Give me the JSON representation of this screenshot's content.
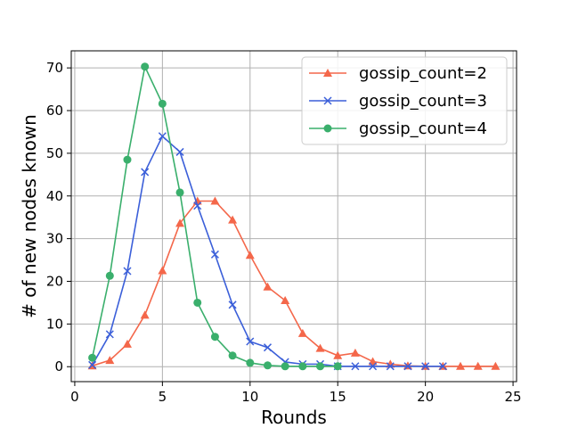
{
  "chart_data": {
    "type": "line",
    "xlabel": "Rounds",
    "ylabel": "# of new nodes known",
    "xlim": [
      -0.2,
      25.2
    ],
    "ylim": [
      -3.5,
      74.0
    ],
    "xticks": [
      0,
      5,
      10,
      15,
      20,
      25
    ],
    "yticks": [
      0,
      10,
      20,
      30,
      40,
      50,
      60,
      70
    ],
    "grid": true,
    "legend_position": "top-right",
    "series": [
      {
        "name": "gossip_count=2",
        "color": "#f4674a",
        "marker": "triangle",
        "x": [
          1,
          2,
          3,
          4,
          5,
          6,
          7,
          8,
          9,
          10,
          11,
          12,
          13,
          14,
          15,
          16,
          17,
          18,
          19,
          20,
          21,
          22,
          23,
          24
        ],
        "y": [
          0.2,
          1.5,
          5.3,
          12.1,
          22.5,
          33.6,
          38.8,
          38.8,
          34.4,
          26.1,
          18.7,
          15.5,
          7.8,
          4.3,
          2.6,
          3.2,
          1.2,
          0.6,
          0.2,
          0.1,
          0.1,
          0.1,
          0.1,
          0.1
        ]
      },
      {
        "name": "gossip_count=3",
        "color": "#3b5fd9",
        "marker": "x",
        "x": [
          1,
          2,
          3,
          4,
          5,
          6,
          7,
          8,
          9,
          10,
          11,
          12,
          13,
          14,
          15,
          16,
          17,
          18,
          19,
          20,
          21
        ],
        "y": [
          0.4,
          7.6,
          22.4,
          45.6,
          54.0,
          50.3,
          37.7,
          26.3,
          14.5,
          5.9,
          4.5,
          1.1,
          0.6,
          0.6,
          0.1,
          0.1,
          0.1,
          0.1,
          0.1,
          0.1,
          0.1
        ]
      },
      {
        "name": "gossip_count=4",
        "color": "#3aaf6c",
        "marker": "circle",
        "x": [
          1,
          2,
          3,
          4,
          5,
          6,
          7,
          8,
          9,
          10,
          11,
          12,
          13,
          14,
          15
        ],
        "y": [
          2.1,
          21.3,
          48.5,
          70.3,
          61.6,
          40.8,
          15.0,
          7.0,
          2.6,
          0.9,
          0.3,
          0.1,
          0.1,
          0.1,
          0.1
        ]
      }
    ]
  }
}
